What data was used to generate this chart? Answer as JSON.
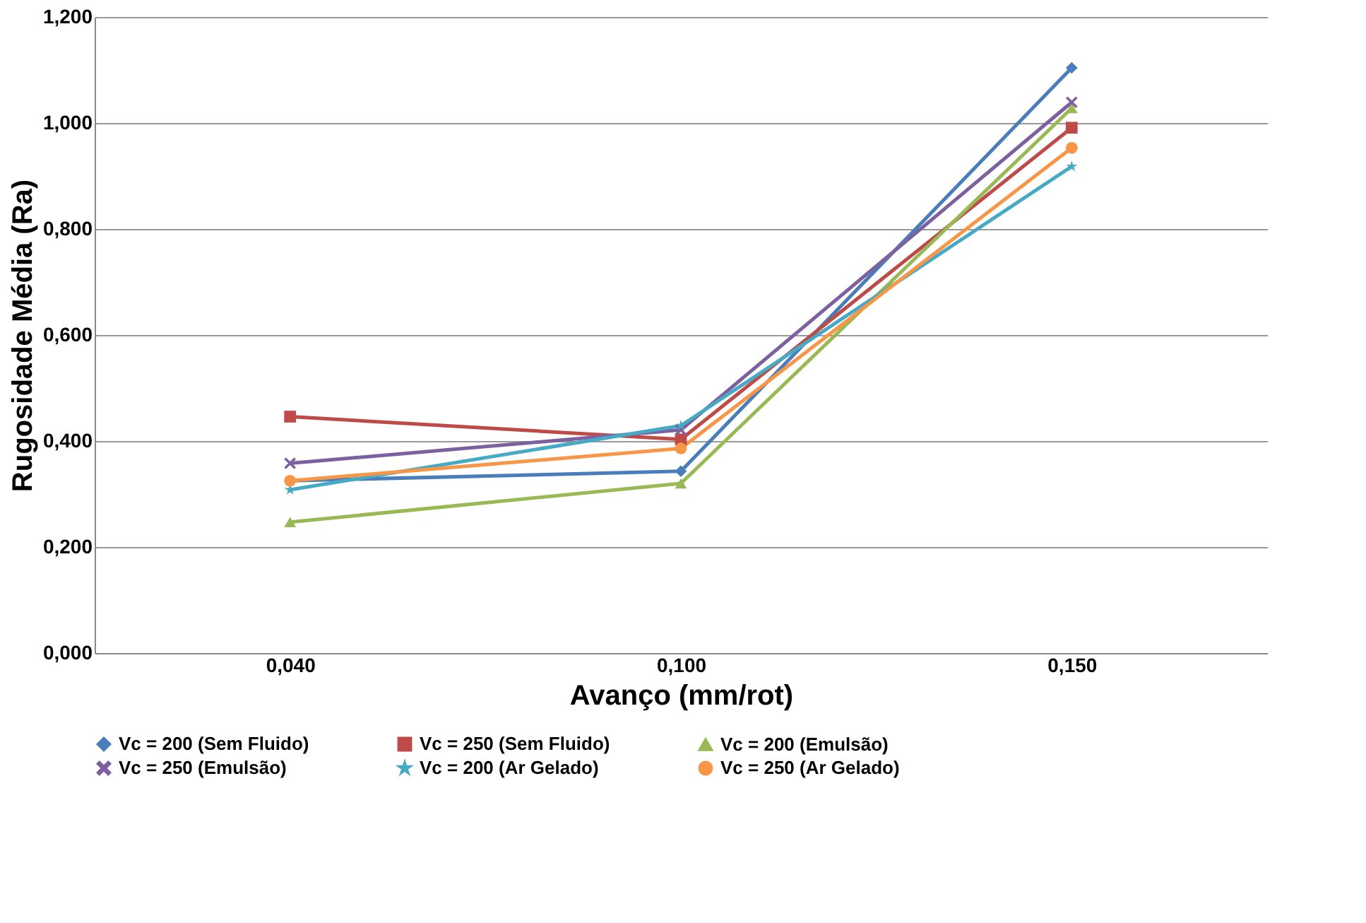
{
  "chart_data": {
    "type": "line",
    "xlabel": "Avanço (mm/rot)",
    "ylabel": "Rugosidade Média (Ra)",
    "categories": [
      "0,040",
      "0,100",
      "0,150"
    ],
    "series": [
      {
        "name": "Vc = 200 (Sem Fluido)",
        "color": "#4a7ebb",
        "marker": "diamond",
        "values": [
          0.325,
          0.343,
          1.104
        ]
      },
      {
        "name": "Vc = 250 (Sem Fluido)",
        "color": "#be4b48",
        "marker": "square",
        "values": [
          0.446,
          0.403,
          0.991
        ]
      },
      {
        "name": "Vc = 200 (Emulsão)",
        "color": "#98b954",
        "marker": "triangle",
        "values": [
          0.247,
          0.32,
          1.028
        ]
      },
      {
        "name": "Vc = 250 (Emulsão)",
        "color": "#7d60a0",
        "marker": "cross",
        "values": [
          0.358,
          0.421,
          1.039
        ]
      },
      {
        "name": "Vc = 200 (Ar Gelado)",
        "color": "#46aac5",
        "marker": "star",
        "values": [
          0.308,
          0.429,
          0.918
        ]
      },
      {
        "name": "Vc = 250 (Ar Gelado)",
        "color": "#f79646",
        "marker": "circle",
        "values": [
          0.325,
          0.386,
          0.953
        ]
      }
    ],
    "ylim": [
      0,
      1.2
    ],
    "yticks": [
      {
        "value": 0,
        "label": "0,000"
      },
      {
        "value": 0.2,
        "label": "0,200"
      },
      {
        "value": 0.4,
        "label": "0,400"
      },
      {
        "value": 0.6,
        "label": "0,600"
      },
      {
        "value": 0.8,
        "label": "0,800"
      },
      {
        "value": 1.0,
        "label": "1,000"
      },
      {
        "value": 1.2,
        "label": "1,200"
      }
    ],
    "grid": "y",
    "legend": "bottom",
    "line_style": "solid"
  }
}
